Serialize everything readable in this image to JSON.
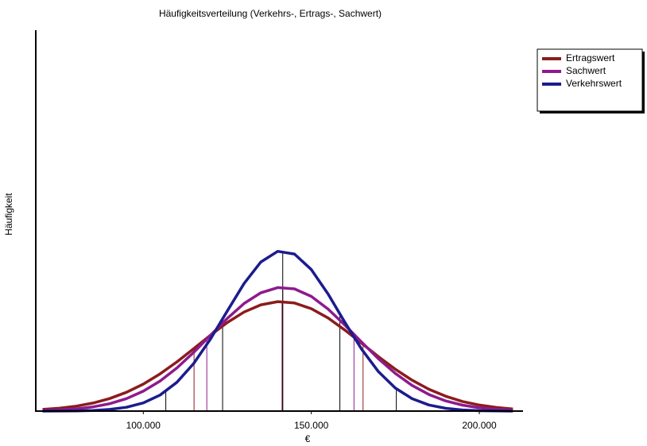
{
  "chart_data": {
    "type": "line",
    "title": "Häufigkeitsverteilung (Verkehrs-, Ertrags-, Sachwert)",
    "x_label": "€",
    "y_label": "Häufigkeit",
    "xlim": [
      68000,
      213000
    ],
    "ylim": [
      0,
      100
    ],
    "xticks": [
      {
        "value": 100000,
        "label": "100.000"
      },
      {
        "value": 150000,
        "label": "150.000"
      },
      {
        "value": 200000,
        "label": "200.000"
      }
    ],
    "legend": "upper right outside",
    "x": [
      70000,
      75000,
      80000,
      85000,
      90000,
      95000,
      100000,
      105000,
      110000,
      115000,
      120000,
      125000,
      130000,
      135000,
      140000,
      145000,
      150000,
      155000,
      160000,
      165000,
      170000,
      175000,
      180000,
      185000,
      190000,
      195000,
      200000,
      205000,
      210000
    ],
    "series": [
      {
        "name": "Ertragswert",
        "color": "#8b1c1c",
        "vline_color": "#8b1c1c",
        "values": [
          0.43,
          0.76,
          1.29,
          2.11,
          3.29,
          4.93,
          7.09,
          9.77,
          12.92,
          16.37,
          19.92,
          23.24,
          25.99,
          27.9,
          28.73,
          28.37,
          26.87,
          24.43,
          21.28,
          17.79,
          14.27,
          10.97,
          8.1,
          5.73,
          3.89,
          2.53,
          1.58,
          0.95,
          0.55
        ],
        "vlines": [
          115100,
          141300,
          165400
        ]
      },
      {
        "name": "Sachwert",
        "color": "#8e1a8e",
        "vline_color": "#8e1a8e",
        "values": [
          0.14,
          0.3,
          0.59,
          1.1,
          1.94,
          3.27,
          5.22,
          7.9,
          11.33,
          15.41,
          19.89,
          24.34,
          28.26,
          31.07,
          32.42,
          32.08,
          30.1,
          26.78,
          22.59,
          18.08,
          13.72,
          9.87,
          6.73,
          4.36,
          2.67,
          1.56,
          0.86,
          0.45,
          0.22
        ],
        "vlines": [
          118900,
          141500,
          162700
        ]
      },
      {
        "name": "Verkehrswert",
        "color": "#1c1c8e",
        "vline_color": "#000000",
        "values": [
          0.01,
          0.02,
          0.06,
          0.17,
          0.43,
          1.0,
          2.14,
          4.2,
          7.56,
          12.49,
          18.92,
          26.29,
          33.49,
          39.14,
          41.94,
          41.22,
          37.15,
          30.72,
          23.29,
          16.2,
          10.33,
          6.04,
          3.24,
          1.6,
          0.72,
          0.3,
          0.11,
          0.04,
          0.01
        ],
        "vlines": [
          106700,
          123600,
          141500,
          158500,
          175300
        ]
      }
    ]
  }
}
